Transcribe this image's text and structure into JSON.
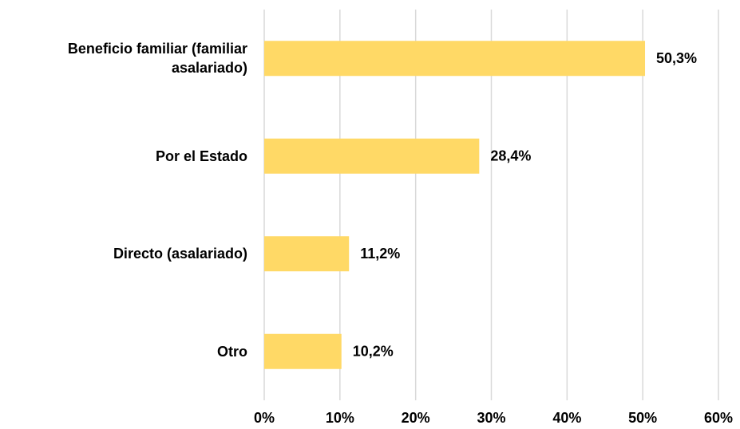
{
  "chart_data": {
    "type": "bar",
    "orientation": "horizontal",
    "categories": [
      "Beneficio familiar (familiar asalariado)",
      "Por el Estado",
      "Directo (asalariado)",
      "Otro"
    ],
    "values": [
      50.3,
      28.4,
      11.2,
      10.2
    ],
    "value_labels": [
      "50,3%",
      "28,4%",
      "11,2%",
      "10,2%"
    ],
    "color": "#ffd966",
    "xlim": [
      0,
      60
    ],
    "xticks": [
      {
        "value": 0,
        "label": "0%"
      },
      {
        "value": 10,
        "label": "10%"
      },
      {
        "value": 20,
        "label": "20%"
      },
      {
        "value": 30,
        "label": "30%"
      },
      {
        "value": 40,
        "label": "40%"
      },
      {
        "value": 50,
        "label": "50%"
      },
      {
        "value": 60,
        "label": "60%"
      }
    ],
    "grid": true
  }
}
